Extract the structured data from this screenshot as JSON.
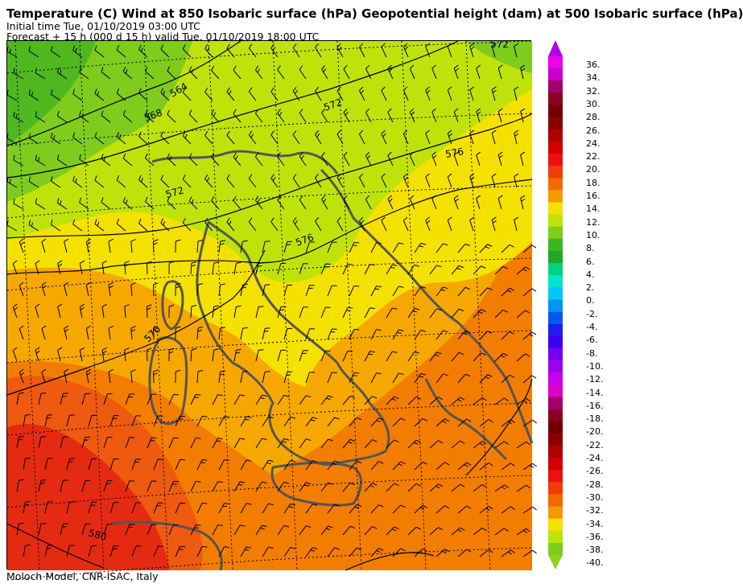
{
  "header": {
    "title": "Temperature (C) Wind  at 850 Isobaric surface (hPa) Geopotential height (dam)  at 500 Isobaric surface (hPa)",
    "initial_time": "Initial time  Tue, 01/10/2019  03:00 UTC",
    "forecast": "Forecast  +  15 h  (000 d 15 h)  valid Tue, 01/10/2019 18:00 UTC"
  },
  "footer": {
    "credit": "Moloch Model, CNR-ISAC, Italy"
  },
  "map": {
    "contour_labels": [
      "564",
      "568",
      "572",
      "572",
      "572",
      "576",
      "576",
      "576",
      "580"
    ],
    "fill_colors": {
      "green_dark": "#4fb81f",
      "green": "#7fcc1d",
      "yellow_green": "#bfe30a",
      "yellow": "#f5e100",
      "orange_light": "#f7a800",
      "orange": "#f37d00",
      "orange_red": "#ee5a0f",
      "red": "#e52a12",
      "coast": "#555555"
    }
  },
  "colorbar": {
    "labels": [
      "36.",
      "34.",
      "32.",
      "30.",
      "28.",
      "26.",
      "24.",
      "22.",
      "20.",
      "18.",
      "16.",
      "14.",
      "12.",
      "10.",
      "8.",
      "6.",
      "4.",
      "2.",
      "0.",
      "-2.",
      "-4.",
      "-6.",
      "-8.",
      "-10.",
      "-12.",
      "-14.",
      "-16.",
      "-18.",
      "-20.",
      "-22.",
      "-24.",
      "-26.",
      "-28.",
      "-30.",
      "-32.",
      "-34.",
      "-36.",
      "-38.",
      "-40."
    ],
    "colors": [
      "#ee00ee",
      "#c800c8",
      "#a3006e",
      "#8c0028",
      "#700000",
      "#8c0000",
      "#b00000",
      "#d20000",
      "#ee1010",
      "#f03c0a",
      "#f26a00",
      "#f59a00",
      "#f5e100",
      "#bfe30a",
      "#7fcc1d",
      "#3cb81f",
      "#20a82a",
      "#00d37a",
      "#00e6cc",
      "#00c8f0",
      "#0096f0",
      "#005af0",
      "#1e1ef0",
      "#3c00f0",
      "#7800f0",
      "#a000f0",
      "#c800e6",
      "#dc00c8",
      "#a3006e",
      "#8c0028",
      "#700000",
      "#8c0000",
      "#b00000",
      "#d20000",
      "#ee1010",
      "#f03c0a",
      "#f26a00",
      "#f59a00",
      "#f5e100",
      "#bfe30a",
      "#7fcc1d"
    ],
    "top_arrow_color": "#b400f0",
    "bottom_arrow_color": "#8fd41a"
  }
}
